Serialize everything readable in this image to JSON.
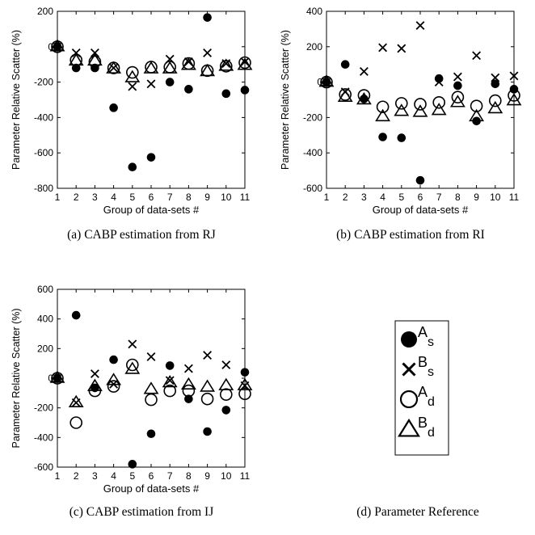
{
  "captions": {
    "a": "(a) CABP estimation from RJ",
    "b": "(b) CABP estimation from RI",
    "c": "(c) CABP estimation from IJ",
    "d": "(d) Parameter Reference"
  },
  "legend": {
    "items": [
      {
        "marker": "filled-circle",
        "main": "A",
        "sub": "s"
      },
      {
        "marker": "cross",
        "main": "B",
        "sub": "s"
      },
      {
        "marker": "open-circle",
        "main": "A",
        "sub": "d"
      },
      {
        "marker": "open-triangle",
        "main": "B",
        "sub": "d"
      }
    ]
  },
  "chart_data": [
    {
      "type": "scatter",
      "xlabel": "Group of data-sets #",
      "ylabel": "Parameter Relative Scatter (%)",
      "x": [
        1,
        2,
        3,
        4,
        5,
        6,
        7,
        8,
        9,
        10,
        11
      ],
      "xlim": [
        1,
        11
      ],
      "ylim": [
        -800,
        200
      ],
      "yticks": [
        200,
        0,
        -200,
        -400,
        -600,
        -800
      ],
      "grid": false,
      "series": [
        {
          "name": "As",
          "marker": "filled-circle",
          "values": [
            0,
            -120,
            -120,
            -345,
            -680,
            -625,
            -200,
            -240,
            165,
            -265,
            -245
          ]
        },
        {
          "name": "Bs",
          "marker": "cross",
          "values": [
            0,
            -35,
            -35,
            -120,
            -225,
            -210,
            -70,
            -85,
            -35,
            -95,
            -85
          ]
        },
        {
          "name": "Ad",
          "marker": "open-circle",
          "values": [
            0,
            -75,
            -85,
            -120,
            -145,
            -115,
            -115,
            -95,
            -135,
            -110,
            -90
          ]
        },
        {
          "name": "Bd",
          "marker": "open-triangle",
          "values": [
            0,
            -80,
            -80,
            -125,
            -175,
            -125,
            -125,
            -105,
            -140,
            -110,
            -105
          ]
        }
      ]
    },
    {
      "type": "scatter",
      "xlabel": "Group of data-sets #",
      "ylabel": "Parameter Relative Scatter (%)",
      "x": [
        1,
        2,
        3,
        4,
        5,
        6,
        7,
        8,
        9,
        10,
        11
      ],
      "xlim": [
        1,
        11
      ],
      "ylim": [
        -600,
        400
      ],
      "yticks": [
        400,
        200,
        0,
        -200,
        -400,
        -600
      ],
      "grid": false,
      "series": [
        {
          "name": "As",
          "marker": "filled-circle",
          "values": [
            0,
            100,
            -95,
            -310,
            -315,
            -555,
            20,
            -20,
            -220,
            -10,
            -40
          ]
        },
        {
          "name": "Bs",
          "marker": "cross",
          "values": [
            0,
            -55,
            60,
            195,
            190,
            320,
            0,
            30,
            150,
            25,
            35
          ]
        },
        {
          "name": "Ad",
          "marker": "open-circle",
          "values": [
            0,
            -70,
            -75,
            -140,
            -120,
            -125,
            -115,
            -85,
            -135,
            -105,
            -75
          ]
        },
        {
          "name": "Bd",
          "marker": "open-triangle",
          "values": [
            0,
            -85,
            -100,
            -195,
            -165,
            -170,
            -160,
            -115,
            -195,
            -150,
            -105
          ]
        }
      ]
    },
    {
      "type": "scatter",
      "xlabel": "Group of data-sets #",
      "ylabel": "Parameter Relative Scatter (%)",
      "x": [
        1,
        2,
        3,
        4,
        5,
        6,
        7,
        8,
        9,
        10,
        11
      ],
      "xlim": [
        1,
        11
      ],
      "ylim": [
        -600,
        600
      ],
      "yticks": [
        600,
        400,
        200,
        0,
        -200,
        -400,
        -600
      ],
      "grid": false,
      "series": [
        {
          "name": "As",
          "marker": "filled-circle",
          "values": [
            0,
            425,
            -65,
            125,
            -580,
            -375,
            85,
            -140,
            -360,
            -215,
            40
          ]
        },
        {
          "name": "Bs",
          "marker": "cross",
          "values": [
            0,
            -165,
            30,
            -40,
            230,
            145,
            -15,
            65,
            155,
            90,
            -50
          ]
        },
        {
          "name": "Ad",
          "marker": "open-circle",
          "values": [
            0,
            -300,
            -85,
            -55,
            90,
            -145,
            -85,
            -85,
            -140,
            -110,
            -105
          ]
        },
        {
          "name": "Bd",
          "marker": "open-triangle",
          "values": [
            0,
            -165,
            -55,
            -15,
            60,
            -75,
            -30,
            -45,
            -60,
            -50,
            -50
          ]
        }
      ]
    }
  ]
}
